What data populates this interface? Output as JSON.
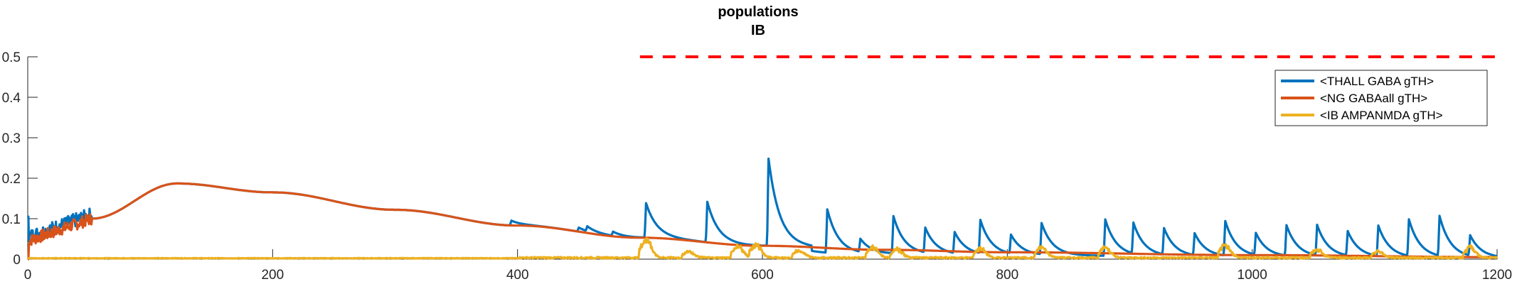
{
  "chart_data": {
    "type": "line",
    "title": [
      "populations",
      "IB"
    ],
    "xlabel": "",
    "ylabel": "",
    "xlim": [
      0,
      1200
    ],
    "ylim": [
      0,
      0.5
    ],
    "xticks": [
      0,
      200,
      400,
      600,
      800,
      1000,
      1200
    ],
    "yticks": [
      0,
      0.1,
      0.2,
      0.3,
      0.4,
      0.5
    ],
    "ytick_labels": [
      "0",
      "0.1",
      "0.2",
      "0.3",
      "0.4",
      "0.5"
    ],
    "legend_position": "top-right",
    "reference_line": {
      "style": "dashed",
      "color": "#FF0000",
      "y": 0.5,
      "x_start": 500,
      "x_end": 1200
    },
    "series": [
      {
        "name": "<THALL GABA gTH>",
        "color": "#0072BD",
        "base": "decay",
        "spikes": [
          [
            395,
            0.012
          ],
          [
            450,
            0.01
          ],
          [
            457,
            0.012
          ],
          [
            478,
            0.01
          ],
          [
            505,
            0.085
          ],
          [
            555,
            0.1
          ],
          [
            605,
            0.215
          ],
          [
            653,
            0.107
          ],
          [
            680,
            0.032
          ],
          [
            707,
            0.092
          ],
          [
            733,
            0.061
          ],
          [
            757,
            0.052
          ],
          [
            778,
            0.082
          ],
          [
            803,
            0.046
          ],
          [
            828,
            0.077
          ],
          [
            880,
            0.09
          ],
          [
            903,
            0.076
          ],
          [
            928,
            0.065
          ],
          [
            953,
            0.054
          ],
          [
            978,
            0.085
          ],
          [
            1003,
            0.054
          ],
          [
            1028,
            0.075
          ],
          [
            1053,
            0.075
          ],
          [
            1078,
            0.06
          ],
          [
            1103,
            0.075
          ],
          [
            1128,
            0.09
          ],
          [
            1153,
            0.098
          ],
          [
            1178,
            0.05
          ]
        ]
      },
      {
        "name": "<NG GABAall gTH>",
        "color": "#D95319",
        "base": "hump",
        "start_noise": [
          0,
          50
        ],
        "peak": {
          "x": 122,
          "y": 0.187
        },
        "points": [
          [
            52,
            0.1
          ],
          [
            122,
            0.187
          ],
          [
            200,
            0.165
          ],
          [
            300,
            0.122
          ],
          [
            400,
            0.083
          ],
          [
            500,
            0.053
          ],
          [
            600,
            0.033
          ],
          [
            700,
            0.023
          ],
          [
            800,
            0.017
          ],
          [
            1000,
            0.01
          ],
          [
            1200,
            0.005
          ]
        ]
      },
      {
        "name": "<IB AMPANMDA gTH>",
        "color": "#EDB120",
        "base": "near-zero",
        "bumps": [
          [
            505,
            0.045
          ],
          [
            540,
            0.015
          ],
          [
            580,
            0.028
          ],
          [
            595,
            0.03
          ],
          [
            630,
            0.018
          ],
          [
            690,
            0.025
          ],
          [
            710,
            0.02
          ],
          [
            778,
            0.022
          ],
          [
            828,
            0.025
          ],
          [
            880,
            0.025
          ],
          [
            978,
            0.03
          ],
          [
            1053,
            0.02
          ],
          [
            1103,
            0.015
          ],
          [
            1178,
            0.025
          ]
        ]
      }
    ]
  }
}
